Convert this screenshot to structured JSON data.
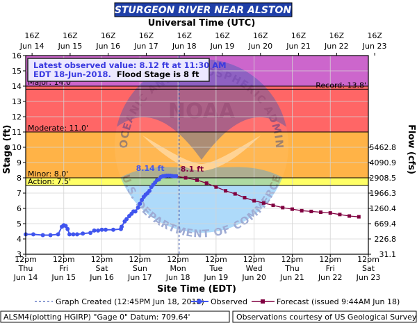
{
  "header": {
    "title": "STURGEON RIVER NEAR ALSTON",
    "title_bg": "#1f3fa8",
    "title_color": "#ffffff"
  },
  "top_axis": {
    "title": "Universal Time (UTC)",
    "ticks": [
      {
        "hour": "16Z",
        "date": "Jun 14"
      },
      {
        "hour": "16Z",
        "date": "Jun 15"
      },
      {
        "hour": "16Z",
        "date": "Jun 16"
      },
      {
        "hour": "16Z",
        "date": "Jun 17"
      },
      {
        "hour": "16Z",
        "date": "Jun 18"
      },
      {
        "hour": "16Z",
        "date": "Jun 19"
      },
      {
        "hour": "16Z",
        "date": "Jun 20"
      },
      {
        "hour": "16Z",
        "date": "Jun 21"
      },
      {
        "hour": "16Z",
        "date": "Jun 22"
      },
      {
        "hour": "16Z",
        "date": "Jun 23"
      }
    ]
  },
  "bottom_axis": {
    "title": "Site Time (EDT)",
    "ticks": [
      {
        "time": "12pm",
        "day": "Thu",
        "date": "Jun 14"
      },
      {
        "time": "12pm",
        "day": "Fri",
        "date": "Jun 15"
      },
      {
        "time": "12pm",
        "day": "Sat",
        "date": "Jun 16"
      },
      {
        "time": "12pm",
        "day": "Sun",
        "date": "Jun 17"
      },
      {
        "time": "12pm",
        "day": "Mon",
        "date": "Jun 18"
      },
      {
        "time": "12pm",
        "day": "Tue",
        "date": "Jun 19"
      },
      {
        "time": "12pm",
        "day": "Wed",
        "date": "Jun 20"
      },
      {
        "time": "12pm",
        "day": "Thu",
        "date": "Jun 21"
      },
      {
        "time": "12pm",
        "day": "Fri",
        "date": "Jun 22"
      },
      {
        "time": "12pm",
        "day": "Sat",
        "date": "Jun 23"
      }
    ]
  },
  "info_box": {
    "line1": "Latest observed value: 8.12 ft at 11:30 AM",
    "line2_blue": "EDT 18-Jun-2018.",
    "line2_black": "Flood Stage is 8 ft"
  },
  "legend": {
    "graph_created": "Graph Created (12:45PM Jun 18, 2018)",
    "observed": "Observed",
    "forecast": "Forecast (issued 9:44AM Jun 18)"
  },
  "footer": {
    "left": "ALSM4(plotting HGIRP) \"Gage 0\" Datum: 709.64'",
    "right": "Observations courtesy of US Geological Survey"
  },
  "watermark": {
    "ring_text_top": "NATIONAL OCEANIC AND ATMOSPHERIC ADMINISTRATION",
    "ring_text_bottom": "U.S. DEPARTMENT OF COMMERCE",
    "center_text": "NOAA"
  },
  "chart_data": {
    "type": "line",
    "x_unit": "days after 12pm EDT Thu Jun 14",
    "ylabel": "Stage (ft)",
    "y2label": "Flow (cfs)",
    "ylim": [
      3,
      16
    ],
    "yticks": [
      3,
      4,
      5,
      6,
      7,
      8,
      9,
      10,
      11,
      12,
      13,
      14,
      15,
      16
    ],
    "xlim": [
      0,
      9
    ],
    "flow_ticks": [
      {
        "stage": 3,
        "label": "31.1"
      },
      {
        "stage": 4,
        "label": "226.8"
      },
      {
        "stage": 5,
        "label": "669.4"
      },
      {
        "stage": 6,
        "label": "1260.4"
      },
      {
        "stage": 7,
        "label": "1966.3"
      },
      {
        "stage": 8,
        "label": "2908.5"
      },
      {
        "stage": 9,
        "label": "4090.9"
      },
      {
        "stage": 10,
        "label": "5462.8"
      }
    ],
    "bands": [
      {
        "name": "Action",
        "from": 7.5,
        "to": 8,
        "color": "#ffff66"
      },
      {
        "name": "Minor",
        "from": 8,
        "to": 11,
        "color": "#ffb347"
      },
      {
        "name": "Moderate",
        "from": 11,
        "to": 14,
        "color": "#ff6666"
      },
      {
        "name": "Major",
        "from": 14,
        "to": 16,
        "color": "#cc66cc"
      }
    ],
    "thresholds": [
      {
        "label": "Action: 7.5'",
        "value": 7.5,
        "align": "left"
      },
      {
        "label": "Minor: 8.0'",
        "value": 8.0,
        "align": "left"
      },
      {
        "label": "Moderate: 11.0'",
        "value": 11.0,
        "align": "left"
      },
      {
        "label": "Major: 14.0'",
        "value": 14.0,
        "align": "left"
      },
      {
        "label": "Record: 13.8'",
        "value": 13.8,
        "align": "right"
      }
    ],
    "graph_created_x": 4.03,
    "series": [
      {
        "name": "Observed",
        "color": "#4055ee",
        "x": [
          0.0,
          0.2,
          0.45,
          0.65,
          0.85,
          0.95,
          1.0,
          1.05,
          1.1,
          1.15,
          1.25,
          1.35,
          1.5,
          1.7,
          1.8,
          1.9,
          2.0,
          2.1,
          2.3,
          2.5,
          2.52,
          2.6,
          2.65,
          2.72,
          2.78,
          2.83,
          2.88,
          2.95,
          3.0,
          3.05,
          3.1,
          3.15,
          3.2,
          3.25,
          3.3,
          3.35,
          3.4,
          3.45,
          3.5,
          3.55,
          3.6,
          3.65,
          3.7,
          3.75,
          3.8,
          3.85,
          3.9,
          3.95
        ],
        "y": [
          4.3,
          4.3,
          4.25,
          4.25,
          4.3,
          4.8,
          4.9,
          4.85,
          4.65,
          4.3,
          4.3,
          4.3,
          4.35,
          4.4,
          4.55,
          4.55,
          4.6,
          4.6,
          4.6,
          4.65,
          4.8,
          5.15,
          5.3,
          5.5,
          5.65,
          5.8,
          5.8,
          6.05,
          6.3,
          6.55,
          6.75,
          6.9,
          7.0,
          7.15,
          7.4,
          7.55,
          7.7,
          7.85,
          7.9,
          8.05,
          8.1,
          8.12,
          8.14,
          8.14,
          8.14,
          8.12,
          8.1,
          8.1
        ]
      },
      {
        "name": "Forecast",
        "color": "#800040",
        "x": [
          3.95,
          4.2,
          4.5,
          4.75,
          5.0,
          5.25,
          5.5,
          5.75,
          6.0,
          6.25,
          6.5,
          6.75,
          7.0,
          7.25,
          7.5,
          7.75,
          8.0,
          8.25,
          8.5,
          8.75
        ],
        "y": [
          8.1,
          8.0,
          7.85,
          7.65,
          7.4,
          7.15,
          6.95,
          6.7,
          6.5,
          6.35,
          6.2,
          6.05,
          5.95,
          5.85,
          5.8,
          5.75,
          5.7,
          5.6,
          5.5,
          5.45
        ]
      }
    ],
    "annotations": [
      {
        "label": "8.14 ft",
        "x": 3.7,
        "y": 8.14,
        "color": "#4055ee"
      },
      {
        "label": "8.1 ft",
        "x": 4.03,
        "y": 8.1,
        "color": "#800040"
      }
    ]
  }
}
